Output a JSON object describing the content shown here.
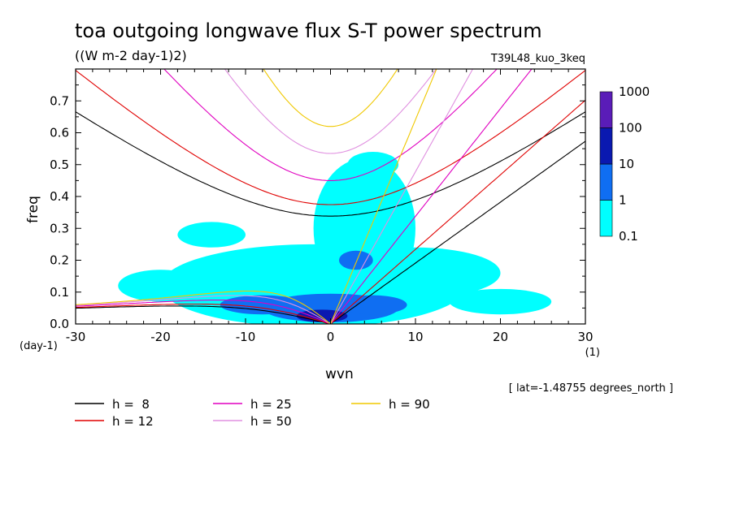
{
  "chart_data": {
    "type": "heatmap",
    "title": "toa outgoing longwave flux S-T power spectrum",
    "subtitle": "((W m-2 day-1)2)",
    "experiment": "T39L48_kuo_3keq",
    "xlabel": "wvn",
    "ylabel": "freq",
    "x_units": "(1)",
    "y_units": "(day-1)",
    "location_note": "[ lat=-1.48755 degrees_north ]",
    "xlim": [
      -30,
      30
    ],
    "ylim": [
      0,
      0.8
    ],
    "x_ticks": [
      -30,
      -20,
      -10,
      0,
      10,
      20,
      30
    ],
    "x_tick_labels": [
      "-30",
      "-20",
      "-10",
      "0",
      "10",
      "20",
      "30"
    ],
    "y_ticks": [
      0,
      0.1,
      0.2,
      0.3,
      0.4,
      0.5,
      0.6,
      0.7
    ],
    "y_tick_labels": [
      "0.0",
      "0.1",
      "0.2",
      "0.3",
      "0.4",
      "0.5",
      "0.6",
      "0.7"
    ],
    "colorbar": {
      "levels": [
        "0.1",
        "1",
        "10",
        "100",
        "1000"
      ],
      "colors": [
        "#00ffff",
        "#0f6ef2",
        "#0a19b0",
        "#5a1cb8"
      ]
    },
    "contour_regions": [
      {
        "level": 0,
        "cx": -2,
        "cy": 0.12,
        "rx": 18,
        "ry": 0.13
      },
      {
        "level": 0,
        "cx": 4,
        "cy": 0.3,
        "rx": 6,
        "ry": 0.22
      },
      {
        "level": 0,
        "cx": 10,
        "cy": 0.16,
        "rx": 10,
        "ry": 0.08
      },
      {
        "level": 0,
        "cx": -14,
        "cy": 0.28,
        "rx": 4,
        "ry": 0.04
      },
      {
        "level": 0,
        "cx": 5,
        "cy": 0.5,
        "rx": 3,
        "ry": 0.04
      },
      {
        "level": 0,
        "cx": -20,
        "cy": 0.12,
        "rx": 5,
        "ry": 0.05
      },
      {
        "level": 0,
        "cx": 20,
        "cy": 0.07,
        "rx": 6,
        "ry": 0.04
      },
      {
        "level": 1,
        "cx": 0,
        "cy": 0.05,
        "rx": 8,
        "ry": 0.045
      },
      {
        "level": 1,
        "cx": -8,
        "cy": 0.06,
        "rx": 5,
        "ry": 0.03
      },
      {
        "level": 1,
        "cx": 3,
        "cy": 0.2,
        "rx": 2,
        "ry": 0.03
      },
      {
        "level": 1,
        "cx": 5,
        "cy": 0.06,
        "rx": 4,
        "ry": 0.03
      },
      {
        "level": 2,
        "cx": -1,
        "cy": 0.025,
        "rx": 3,
        "ry": 0.02
      }
    ],
    "series": [
      {
        "name": "h =  8",
        "color": "#000000",
        "h": 8
      },
      {
        "name": "h = 12",
        "color": "#e00000",
        "h": 12
      },
      {
        "name": "h = 25",
        "color": "#e000c0",
        "h": 25
      },
      {
        "name": "h = 50",
        "color": "#e090e0",
        "h": 50
      },
      {
        "name": "h = 90",
        "color": "#f0c800",
        "h": 90
      }
    ]
  }
}
